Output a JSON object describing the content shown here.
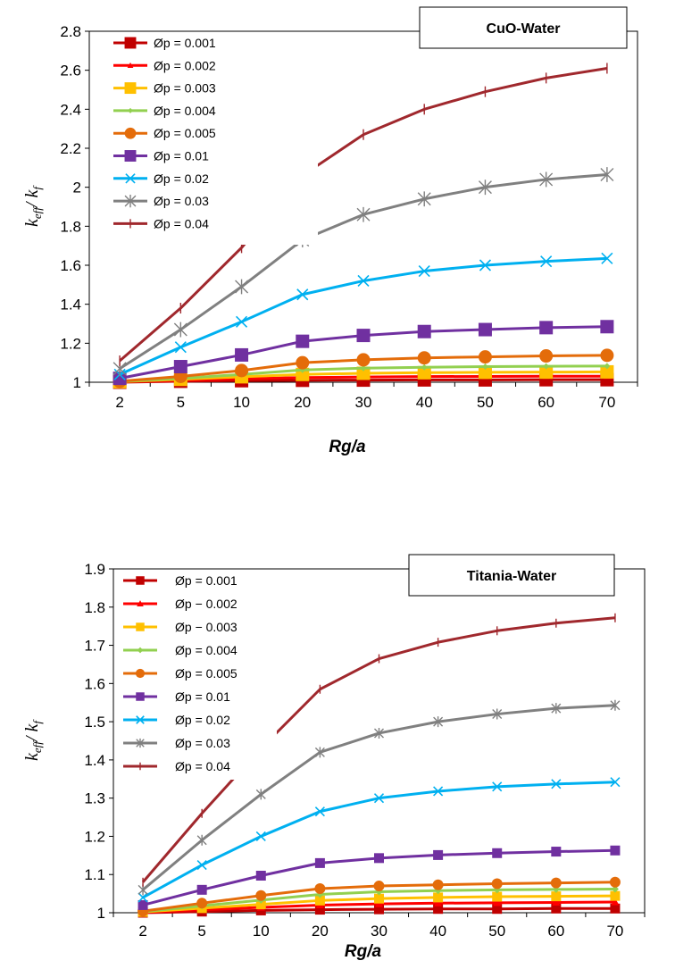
{
  "chart_data": [
    {
      "type": "line",
      "title": "CuO-Water",
      "xlabel": "Rg/a",
      "ylabel": {
        "main": "k",
        "sub1": "eff",
        "sep": "/ k",
        "sub2": "f"
      },
      "categories": [
        "2",
        "5",
        "10",
        "20",
        "30",
        "40",
        "50",
        "60",
        "70"
      ],
      "ylim": [
        1,
        2.8
      ],
      "yticks": [
        "1",
        "1.2",
        "1.4",
        "1.6",
        "1.8",
        "2",
        "2.2",
        "2.4",
        "2.6",
        "2.8"
      ],
      "legend_position": "top-left",
      "series": [
        {
          "name": "Øp = 0.001",
          "color": "#c00000",
          "marker": "square",
          "values": [
            1.0,
            1.005,
            1.008,
            1.01,
            1.011,
            1.012,
            1.012,
            1.013,
            1.013
          ]
        },
        {
          "name": "Øp = 0.002",
          "color": "#ff0000",
          "marker": "triangle",
          "values": [
            1.002,
            1.01,
            1.018,
            1.024,
            1.027,
            1.029,
            1.03,
            1.031,
            1.031
          ]
        },
        {
          "name": "Øp = 0.003",
          "color": "#ffc000",
          "marker": "square",
          "values": [
            1.003,
            1.015,
            1.028,
            1.04,
            1.046,
            1.049,
            1.051,
            1.052,
            1.053
          ]
        },
        {
          "name": "Øp = 0.004",
          "color": "#92d050",
          "marker": "diamond",
          "values": [
            1.004,
            1.02,
            1.04,
            1.063,
            1.072,
            1.077,
            1.08,
            1.082,
            1.083
          ]
        },
        {
          "name": "Øp = 0.005",
          "color": "#e46c0a",
          "marker": "circle",
          "values": [
            1.005,
            1.03,
            1.06,
            1.1,
            1.115,
            1.125,
            1.13,
            1.135,
            1.138
          ]
        },
        {
          "name": "Øp = 0.01",
          "color": "#7030a0",
          "marker": "square",
          "values": [
            1.02,
            1.08,
            1.14,
            1.21,
            1.24,
            1.26,
            1.27,
            1.28,
            1.285
          ]
        },
        {
          "name": "Øp = 0.02",
          "color": "#00b0f0",
          "marker": "x",
          "values": [
            1.04,
            1.18,
            1.31,
            1.45,
            1.52,
            1.57,
            1.6,
            1.62,
            1.635
          ]
        },
        {
          "name": "Øp = 0.03",
          "color": "#808080",
          "marker": "star",
          "values": [
            1.07,
            1.27,
            1.49,
            1.73,
            1.86,
            1.94,
            2.0,
            2.04,
            2.065
          ]
        },
        {
          "name": "Øp = 0.04",
          "color": "#a0282d",
          "marker": "plus",
          "values": [
            1.11,
            1.38,
            1.69,
            2.06,
            2.27,
            2.4,
            2.49,
            2.56,
            2.61
          ]
        }
      ]
    },
    {
      "type": "line",
      "title": "Titania-Water",
      "xlabel": "Rg/a",
      "ylabel": {
        "main": "k",
        "sub1": "eff",
        "sep": "/ k",
        "sub2": "f"
      },
      "categories": [
        "2",
        "5",
        "10",
        "20",
        "30",
        "40",
        "50",
        "60",
        "70"
      ],
      "ylim": [
        1,
        1.9
      ],
      "yticks": [
        "1",
        "1.1",
        "1.2",
        "1.3",
        "1.4",
        "1.5",
        "1.6",
        "1.7",
        "1.8",
        "1.9"
      ],
      "legend_position": "top-left",
      "series": [
        {
          "name": "Øp = 0.001",
          "color": "#c00000",
          "marker": "square",
          "values": [
            1.0,
            1.003,
            1.006,
            1.008,
            1.009,
            1.01,
            1.01,
            1.011,
            1.011
          ]
        },
        {
          "name": "Øp − 0.002",
          "color": "#ff0000",
          "marker": "triangle",
          "values": [
            1.001,
            1.008,
            1.014,
            1.02,
            1.023,
            1.025,
            1.026,
            1.027,
            1.028
          ]
        },
        {
          "name": "Øp − 0.003",
          "color": "#ffc000",
          "marker": "square",
          "values": [
            1.002,
            1.012,
            1.022,
            1.032,
            1.037,
            1.04,
            1.042,
            1.043,
            1.044
          ]
        },
        {
          "name": "Øp = 0.004",
          "color": "#92d050",
          "marker": "diamond",
          "values": [
            1.003,
            1.018,
            1.033,
            1.048,
            1.055,
            1.058,
            1.06,
            1.061,
            1.062
          ]
        },
        {
          "name": "Øp = 0.005",
          "color": "#e46c0a",
          "marker": "circle",
          "values": [
            1.004,
            1.025,
            1.045,
            1.063,
            1.07,
            1.073,
            1.076,
            1.078,
            1.08
          ]
        },
        {
          "name": "Øp = 0.01",
          "color": "#7030a0",
          "marker": "square",
          "values": [
            1.02,
            1.06,
            1.097,
            1.13,
            1.143,
            1.151,
            1.156,
            1.16,
            1.163
          ]
        },
        {
          "name": "Øp = 0.02",
          "color": "#00b0f0",
          "marker": "x",
          "values": [
            1.04,
            1.125,
            1.2,
            1.265,
            1.3,
            1.318,
            1.33,
            1.337,
            1.342
          ]
        },
        {
          "name": "Øp = 0.03",
          "color": "#808080",
          "marker": "star",
          "values": [
            1.06,
            1.19,
            1.31,
            1.42,
            1.47,
            1.5,
            1.52,
            1.535,
            1.543
          ]
        },
        {
          "name": "Øp = 0.04",
          "color": "#a0282d",
          "marker": "plus",
          "values": [
            1.08,
            1.26,
            1.43,
            1.585,
            1.665,
            1.708,
            1.738,
            1.758,
            1.772
          ]
        }
      ]
    }
  ]
}
